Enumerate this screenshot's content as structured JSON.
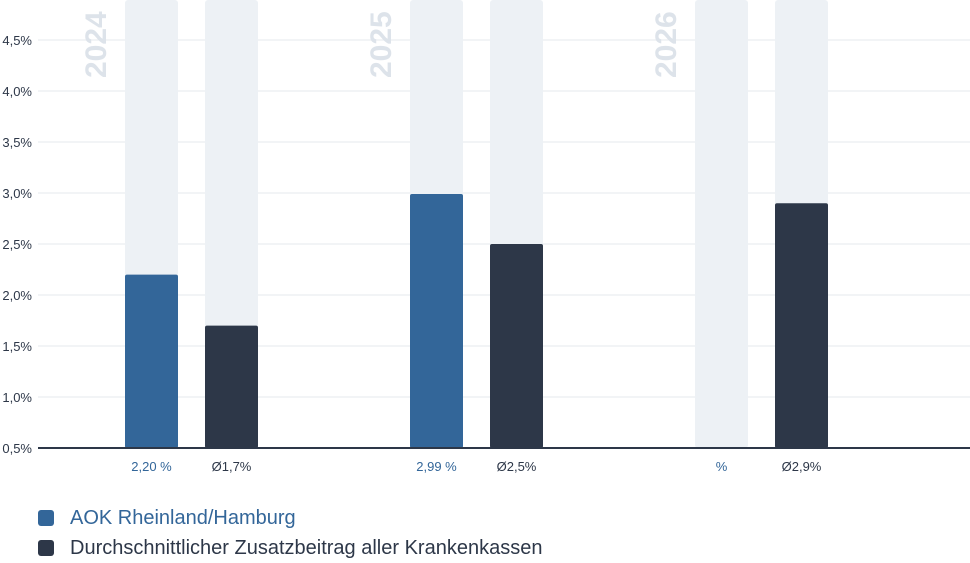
{
  "chart_data": {
    "type": "bar",
    "groups": [
      "2024",
      "2025",
      "2026"
    ],
    "y_ticks": [
      "0,5%",
      "1,0%",
      "1,5%",
      "2,0%",
      "2,5%",
      "3,0%",
      "3,5%",
      "4,0%",
      "4,5%"
    ],
    "ylim": [
      0.5,
      4.5
    ],
    "grid": true,
    "series": [
      {
        "name": "AOK Rheinland/Hamburg",
        "color": "#336699",
        "values": [
          2.2,
          2.99,
          null
        ],
        "labels": [
          "2,20 %",
          "2,99 %",
          "%"
        ]
      },
      {
        "name": "Durchschnittlicher Zusatzbeitrag aller Krankenkassen",
        "color": "#2d3748",
        "values": [
          1.7,
          2.5,
          2.9
        ],
        "labels": [
          "Ø1,7%",
          "Ø2,5%",
          "Ø2,9%"
        ]
      }
    ],
    "track_color": "#edf1f5",
    "grid_color": "#e6e9ee",
    "axis_color": "#2d3748",
    "year_label_color": "#dde3ea"
  }
}
